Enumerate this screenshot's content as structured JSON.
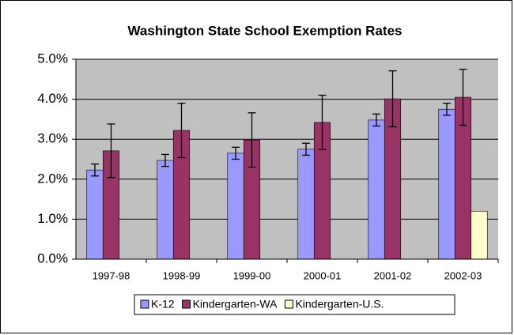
{
  "chart_data": {
    "type": "bar",
    "title": "Washington State School Exemption Rates",
    "categories": [
      "1997-98",
      "1998-99",
      "1999-00",
      "2000-01",
      "2001-02",
      "2002-03"
    ],
    "series": [
      {
        "name": "K-12",
        "color": "#9999ff",
        "values": [
          2.23,
          2.47,
          2.65,
          2.75,
          3.48,
          3.75
        ],
        "errors": [
          0.15,
          0.15,
          0.15,
          0.15,
          0.15,
          0.15
        ]
      },
      {
        "name": "Kindergarten-WA",
        "color": "#993366",
        "values": [
          2.71,
          3.22,
          2.98,
          3.42,
          4.01,
          4.05
        ],
        "errors": [
          0.67,
          0.68,
          0.68,
          0.68,
          0.7,
          0.7
        ]
      },
      {
        "name": "Kindergarten-U.S.",
        "color": "#ffffcc",
        "values": [
          null,
          null,
          null,
          null,
          null,
          1.2
        ],
        "errors": [
          null,
          null,
          null,
          null,
          null,
          null
        ]
      }
    ],
    "ylim": [
      0,
      5
    ],
    "yticks": [
      {
        "value": 0,
        "label": "0.0%"
      },
      {
        "value": 1,
        "label": "1.0%"
      },
      {
        "value": 2,
        "label": "2.0%"
      },
      {
        "value": 3,
        "label": "3.0%"
      },
      {
        "value": 4,
        "label": "4.0%"
      },
      {
        "value": 5,
        "label": "5.0%"
      }
    ],
    "grid": true,
    "legend": "bottom"
  }
}
